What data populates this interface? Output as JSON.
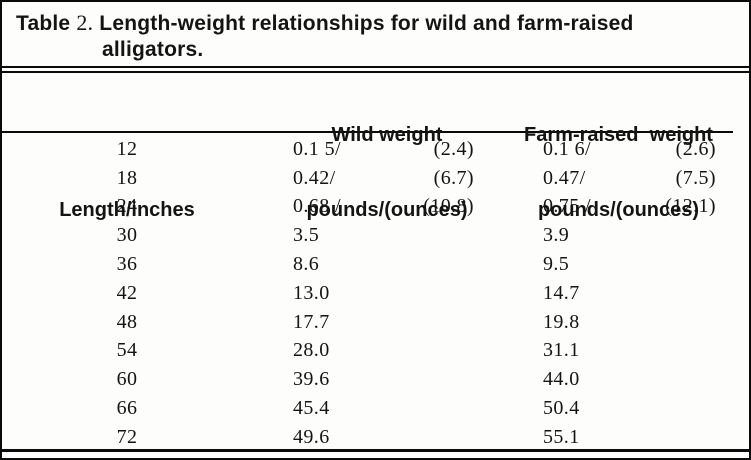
{
  "page": {
    "background_color": "#fdfdfc",
    "border_color": "#0a0a0a",
    "text_color": "#141414"
  },
  "title": {
    "prefix": "Table",
    "number": "2.",
    "line1_rest": "Length-weight relationships for wild and farm-raised",
    "line2": "alligators."
  },
  "table": {
    "columns": [
      {
        "id": "length",
        "line1": "Length/inches",
        "line2": ""
      },
      {
        "id": "wild",
        "line1": "Wild weight",
        "line2": "pounds/(ounces)"
      },
      {
        "id": "farm",
        "line1": "Farm-raised  weight",
        "line2": "pounds/(ounces)"
      }
    ],
    "rows": [
      {
        "length": "12",
        "wild_lb": "0.1 5/",
        "wild_oz": "(2.4)",
        "farm_lb": "0.1 6/",
        "farm_oz": "(2.6)"
      },
      {
        "length": "18",
        "wild_lb": "0.42/",
        "wild_oz": "(6.7)",
        "farm_lb": "0.47/",
        "farm_oz": "(7.5)"
      },
      {
        "length": "24",
        "wild_lb": "0.68 /",
        "wild_oz": "(10.8)",
        "farm_lb": "0.75 /",
        "farm_oz": "(12.1)"
      },
      {
        "length": "30",
        "wild_lb": "3.5",
        "wild_oz": "",
        "farm_lb": "3.9",
        "farm_oz": ""
      },
      {
        "length": "36",
        "wild_lb": "8.6",
        "wild_oz": "",
        "farm_lb": "9.5",
        "farm_oz": ""
      },
      {
        "length": "42",
        "wild_lb": "13.0",
        "wild_oz": "",
        "farm_lb": "14.7",
        "farm_oz": ""
      },
      {
        "length": "48",
        "wild_lb": "17.7",
        "wild_oz": "",
        "farm_lb": "19.8",
        "farm_oz": ""
      },
      {
        "length": "54",
        "wild_lb": "28.0",
        "wild_oz": "",
        "farm_lb": "31.1",
        "farm_oz": ""
      },
      {
        "length": "60",
        "wild_lb": "39.6",
        "wild_oz": "",
        "farm_lb": "44.0",
        "farm_oz": ""
      },
      {
        "length": "66",
        "wild_lb": "45.4",
        "wild_oz": "",
        "farm_lb": "50.4",
        "farm_oz": ""
      },
      {
        "length": "72",
        "wild_lb": "49.6",
        "wild_oz": "",
        "farm_lb": "55.1",
        "farm_oz": ""
      }
    ]
  }
}
